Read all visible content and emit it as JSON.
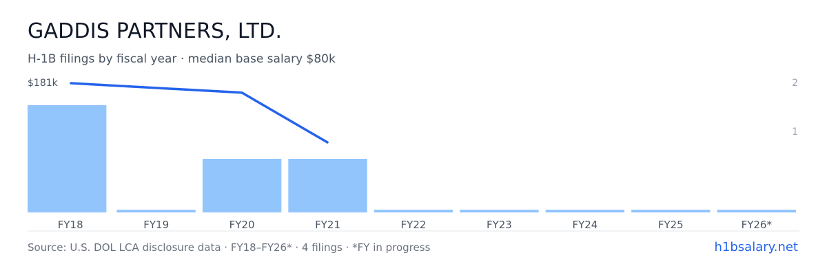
{
  "company": "GADDIS PARTNERS, LTD.",
  "subtitle": "H-1B filings by fiscal year · median base salary $80k",
  "footer": {
    "source": "Source: U.S. DOL LCA disclosure data · FY18–FY26* · 4 filings · *FY in progress",
    "brand": "h1bsalary.net"
  },
  "colors": {
    "bar": "#93c5fd",
    "line": "#2563eb",
    "axis_text": "#6b7280",
    "baseline": "#e5e7eb"
  },
  "chart_data": {
    "type": "bar",
    "categories": [
      "FY18",
      "FY19",
      "FY20",
      "FY21",
      "FY22",
      "FY23",
      "FY24",
      "FY25",
      "FY26*"
    ],
    "series": [
      {
        "values": [
          2,
          0,
          1,
          1,
          0,
          0,
          0,
          0,
          0
        ],
        "axis": "right"
      },
      {
        "type": "line",
        "values": [
          181000,
          177000,
          156000,
          null,
          null,
          null,
          null,
          null,
          null
        ],
        "axis": "left"
      }
    ],
    "line_points": [
      {
        "x": 0,
        "y": 181000
      },
      {
        "x": 1.5,
        "y": 177000
      },
      {
        "x": 2.5,
        "y": 156000
      }
    ],
    "left_axis": {
      "ticks": [
        {
          "value": 181000,
          "label": "$181k"
        }
      ]
    },
    "right_axis": {
      "ylim": [
        0,
        2
      ],
      "ticks": [
        {
          "value": 2,
          "label": "2"
        },
        {
          "value": 1,
          "label": "1"
        }
      ]
    }
  }
}
